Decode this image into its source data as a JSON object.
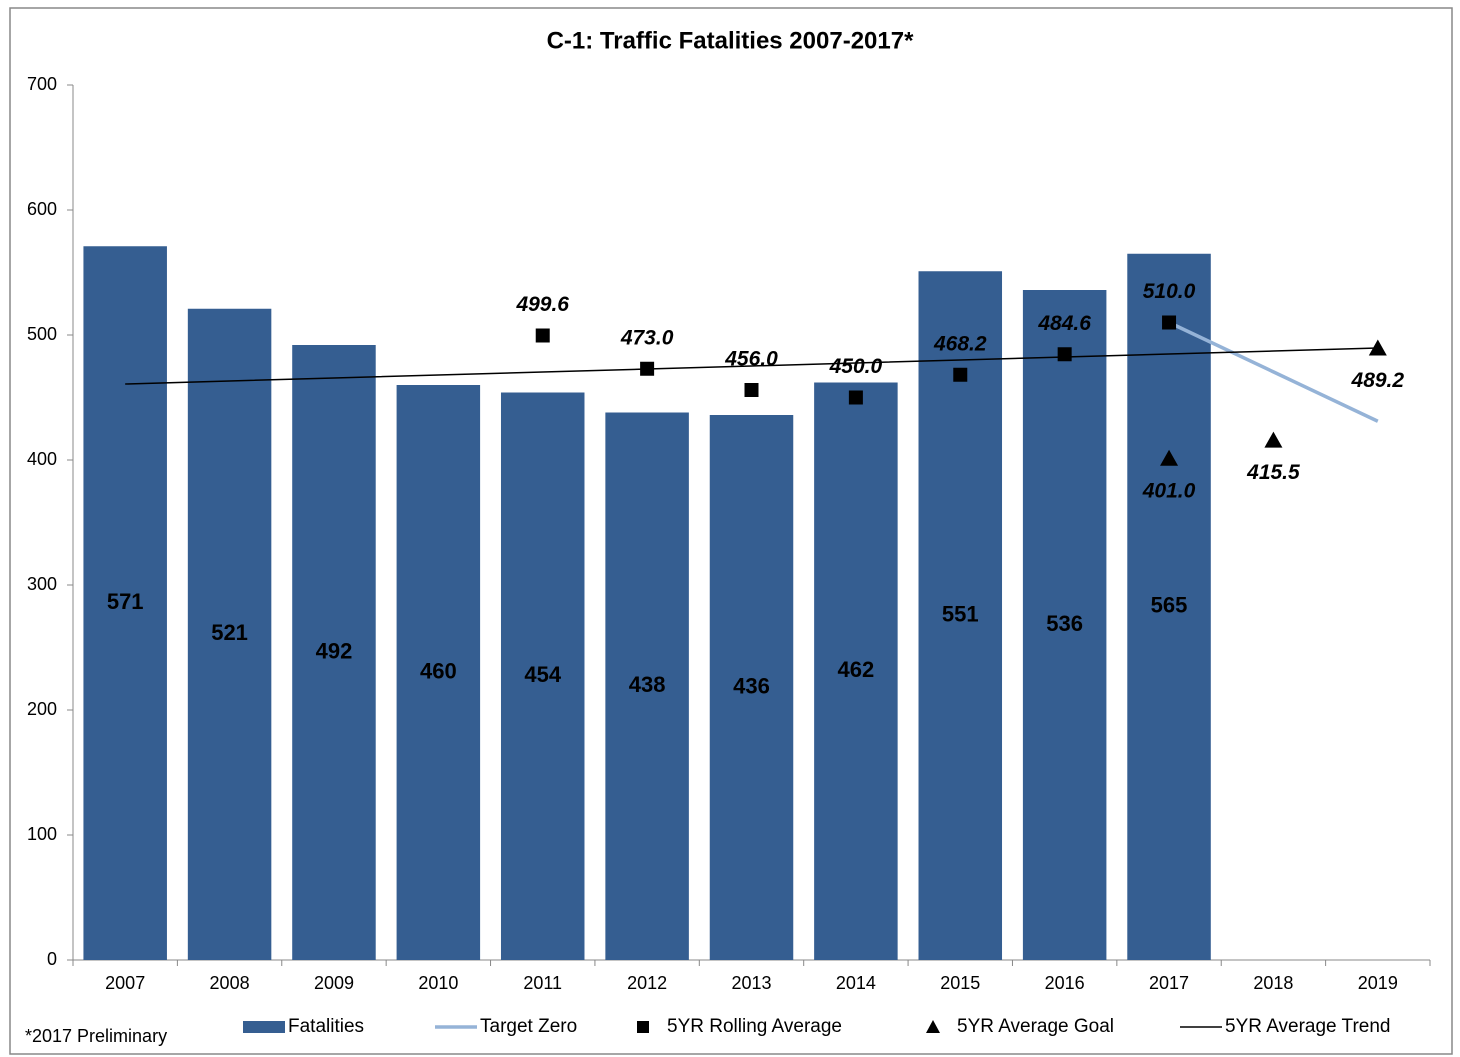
{
  "chart_data": {
    "type": "bar",
    "title": "C-1: Traffic Fatalities 2007-2017*",
    "note": "*2017 Preliminary",
    "categories": [
      "2007",
      "2008",
      "2009",
      "2010",
      "2011",
      "2012",
      "2013",
      "2014",
      "2015",
      "2016",
      "2017",
      "2018",
      "2019"
    ],
    "ylim": [
      0,
      700
    ],
    "yticks": [
      0,
      100,
      200,
      300,
      400,
      500,
      600,
      700
    ],
    "series": [
      {
        "name": "Fatalities",
        "type": "bar",
        "color": "#355e91",
        "values": [
          571,
          521,
          492,
          460,
          454,
          438,
          436,
          462,
          551,
          536,
          565,
          null,
          null
        ]
      },
      {
        "name": "Target Zero",
        "type": "line",
        "color": "#95b3d7",
        "values": [
          null,
          null,
          null,
          null,
          null,
          null,
          null,
          null,
          null,
          null,
          510,
          470.5,
          431
        ]
      },
      {
        "name": "5YR Rolling Average",
        "type": "scatter",
        "marker": "square",
        "color": "#000000",
        "values": [
          null,
          null,
          null,
          null,
          499.6,
          473.0,
          456.0,
          450.0,
          468.2,
          484.6,
          510.0,
          null,
          null
        ],
        "value_labels": [
          null,
          null,
          null,
          null,
          "499.6",
          "473.0",
          "456.0",
          "450.0",
          "468.2",
          "484.6",
          "510.0",
          null,
          null
        ]
      },
      {
        "name": "5YR Average Goal",
        "type": "scatter",
        "marker": "triangle",
        "color": "#000000",
        "values": [
          null,
          null,
          null,
          null,
          null,
          null,
          null,
          null,
          null,
          null,
          401.0,
          415.5,
          489.2
        ],
        "value_labels": [
          null,
          null,
          null,
          null,
          null,
          null,
          null,
          null,
          null,
          null,
          "401.0",
          "415.5",
          "489.2"
        ]
      },
      {
        "name": "5YR Average Trend",
        "type": "line",
        "color": "#000000",
        "values": [
          460.8,
          463.2,
          465.6,
          468,
          470.4,
          472.8,
          475.2,
          477.6,
          480,
          482.4,
          484.8,
          487.2,
          489.6
        ]
      }
    ]
  }
}
